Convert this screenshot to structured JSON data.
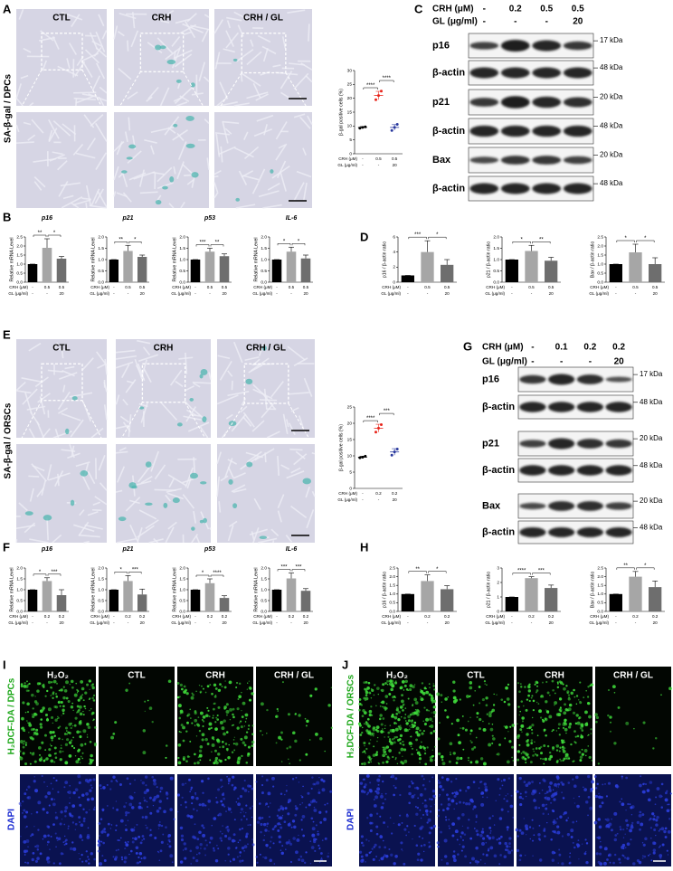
{
  "figure": {
    "letters": [
      "A",
      "B",
      "C",
      "D",
      "E",
      "F",
      "G",
      "H",
      "I",
      "J"
    ],
    "A": {
      "columns": [
        "CTL",
        "CRH",
        "CRH / GL"
      ],
      "side_label": "SA-β-gal / DPCs"
    },
    "C": {
      "header": [
        {
          "name": "CRH (μM)",
          "values": [
            "-",
            "0.2",
            "0.5",
            "0.5"
          ]
        },
        {
          "name": "GL (μg/ml)",
          "values": [
            "-",
            "-",
            "-",
            "20"
          ]
        }
      ],
      "rows": [
        {
          "label": "p16",
          "kda": "17 kDa"
        },
        {
          "label": "β-actin",
          "kda": "48 kDa"
        },
        {
          "label": "p21",
          "kda": "20 kDa"
        },
        {
          "label": "β-actin",
          "kda": "48 kDa"
        },
        {
          "label": "Bax",
          "kda": "20 kDa"
        },
        {
          "label": "β-actin",
          "kda": "48 kDa"
        }
      ]
    },
    "E": {
      "columns": [
        "CTL",
        "CRH",
        "CRH / GL"
      ],
      "side_label": "SA-β-gal / ORSCs"
    },
    "G": {
      "header": [
        {
          "name": "CRH (μM)",
          "values": [
            "-",
            "0.1",
            "0.2",
            "0.2"
          ]
        },
        {
          "name": "GL (μg/ml)",
          "values": [
            "-",
            "-",
            "-",
            "20"
          ]
        }
      ],
      "rows": [
        {
          "label": "p16",
          "kda": "17 kDa"
        },
        {
          "label": "β-actin",
          "kda": "48 kDa"
        },
        {
          "label": "p21",
          "kda": "20 kDa"
        },
        {
          "label": "β-actin",
          "kda": "48 kDa"
        },
        {
          "label": "Bax",
          "kda": "20 kDa"
        },
        {
          "label": "β-actin",
          "kda": "48 kDa"
        }
      ]
    },
    "I": {
      "columns": [
        "H₂O₂",
        "CTL",
        "CRH",
        "CRH / GL"
      ],
      "side_labels": [
        "H₂DCF-DA / DPCs",
        "DAPI"
      ]
    },
    "J": {
      "columns": [
        "H₂O₂",
        "CTL",
        "CRH",
        "CRH / GL"
      ],
      "side_labels": [
        "H₂DCF-DA / ORSCs",
        "DAPI"
      ]
    }
  },
  "chart_data": [
    {
      "type": "dot",
      "ylabel": "β-gal positive cells (%)",
      "values": [
        9.5,
        21,
        9.5
      ],
      "errors": [
        0.3,
        1.5,
        1.0
      ],
      "points": [
        [
          9.2,
          9.5,
          9.7
        ],
        [
          19.5,
          21.0,
          22.6
        ],
        [
          8.4,
          9.5,
          10.6
        ]
      ],
      "colors": [
        "#000000",
        "#e8251c",
        "#2b3a9e"
      ],
      "ylim": [
        0,
        30
      ],
      "yticks": [
        0,
        5,
        10,
        15,
        20,
        25,
        30
      ],
      "annotations": [
        "****",
        "****"
      ],
      "conditions": [
        {
          "name": "CRH (μM)",
          "values": [
            "-",
            "0.5",
            "0.5"
          ]
        },
        {
          "name": "GL (μg/ml)",
          "values": [
            "-",
            "-",
            "20"
          ]
        }
      ]
    },
    {
      "type": "bar",
      "title": "p16",
      "ylabel": "Relative mRNA Level",
      "values": [
        1,
        1.9,
        1.3
      ],
      "errors": [
        0,
        0.5,
        0.12
      ],
      "colors": [
        "#000000",
        "#a6a6a6",
        "#6e6e6e"
      ],
      "ylim": [
        0,
        2.5
      ],
      "yticks": [
        {
          "value": 0,
          "label": "0.0"
        },
        0.5,
        {
          "value": 1,
          "label": "1.0"
        },
        1.5,
        {
          "value": 2,
          "label": "2.0"
        },
        2.5
      ],
      "annotations": [
        "**",
        "*"
      ],
      "conditions": [
        {
          "name": "CRH (μM)",
          "values": [
            "-",
            "0.5",
            "0.5"
          ]
        },
        {
          "name": "GL (μg/ml)",
          "values": [
            "-",
            "-",
            "20"
          ]
        }
      ]
    },
    {
      "type": "bar",
      "title": "p21",
      "ylabel": "Relative mRNA Level",
      "values": [
        1,
        1.38,
        1.12
      ],
      "errors": [
        0,
        0.25,
        0.08
      ],
      "colors": [
        "#000000",
        "#a6a6a6",
        "#6e6e6e"
      ],
      "ylim": [
        0,
        2
      ],
      "yticks": [
        {
          "value": 0,
          "label": "0.0"
        },
        0.5,
        {
          "value": 1,
          "label": "1.0"
        },
        1.5,
        {
          "value": 2,
          "label": "2.0"
        }
      ],
      "annotations": [
        "**",
        "*"
      ],
      "conditions": [
        {
          "name": "CRH (μM)",
          "values": [
            "-",
            "0.5",
            "0.5"
          ]
        },
        {
          "name": "GL (μg/ml)",
          "values": [
            "-",
            "-",
            "20"
          ]
        }
      ]
    },
    {
      "type": "bar",
      "title": "p53",
      "ylabel": "Relative mRNA Level",
      "values": [
        1,
        1.35,
        1.15
      ],
      "errors": [
        0,
        0.15,
        0.1
      ],
      "colors": [
        "#000000",
        "#a6a6a6",
        "#6e6e6e"
      ],
      "ylim": [
        0,
        2
      ],
      "yticks": [
        {
          "value": 0,
          "label": "0.0"
        },
        0.5,
        {
          "value": 1,
          "label": "1.0"
        },
        1.5,
        {
          "value": 2,
          "label": "2.0"
        }
      ],
      "annotations": [
        "***",
        "**"
      ],
      "conditions": [
        {
          "name": "CRH (μM)",
          "values": [
            "-",
            "0.5",
            "0.5"
          ]
        },
        {
          "name": "GL (μg/ml)",
          "values": [
            "-",
            "-",
            "20"
          ]
        }
      ]
    },
    {
      "type": "bar",
      "title": "IL-6",
      "ylabel": "Relative mRNA Level",
      "values": [
        1,
        1.35,
        1.05
      ],
      "errors": [
        0,
        0.2,
        0.15
      ],
      "colors": [
        "#000000",
        "#a6a6a6",
        "#6e6e6e"
      ],
      "ylim": [
        0,
        2
      ],
      "yticks": [
        {
          "value": 0,
          "label": "0.0"
        },
        0.5,
        {
          "value": 1,
          "label": "1.0"
        },
        1.5,
        {
          "value": 2,
          "label": "2.0"
        }
      ],
      "annotations": [
        "*",
        "*"
      ],
      "conditions": [
        {
          "name": "CRH (μM)",
          "values": [
            "-",
            "0.5",
            "0.5"
          ]
        },
        {
          "name": "GL (μg/ml)",
          "values": [
            "-",
            "-",
            "20"
          ]
        }
      ]
    },
    {
      "type": "bar",
      "ylabel": "p16 / β-actin ratio",
      "values": [
        0.9,
        4.0,
        2.3
      ],
      "errors": [
        0,
        1.5,
        0.7
      ],
      "colors": [
        "#000000",
        "#a6a6a6",
        "#6e6e6e"
      ],
      "ylim": [
        0,
        6
      ],
      "yticks": [
        0,
        2,
        4,
        6
      ],
      "annotations": [
        "***",
        "*"
      ],
      "conditions": [
        {
          "name": "CRH (μM)",
          "values": [
            "-",
            "0.5",
            "0.5"
          ]
        },
        {
          "name": "GL (μg/ml)",
          "values": [
            "-",
            "-",
            "20"
          ]
        }
      ]
    },
    {
      "type": "bar",
      "ylabel": "p21 / β-actin ratio",
      "values": [
        1,
        1.38,
        0.95
      ],
      "errors": [
        0,
        0.25,
        0.15
      ],
      "colors": [
        "#000000",
        "#a6a6a6",
        "#6e6e6e"
      ],
      "ylim": [
        0,
        2
      ],
      "yticks": [
        {
          "value": 0,
          "label": "0.0"
        },
        0.5,
        {
          "value": 1,
          "label": "1.0"
        },
        1.5,
        {
          "value": 2,
          "label": "2.0"
        }
      ],
      "annotations": [
        "*",
        "**"
      ],
      "conditions": [
        {
          "name": "CRH (μM)",
          "values": [
            "-",
            "0.5",
            "0.5"
          ]
        },
        {
          "name": "GL (μg/ml)",
          "values": [
            "-",
            "-",
            "20"
          ]
        }
      ]
    },
    {
      "type": "bar",
      "ylabel": "Bax / β-actin ratio",
      "values": [
        1,
        1.65,
        1.0
      ],
      "errors": [
        0,
        0.45,
        0.35
      ],
      "colors": [
        "#000000",
        "#a6a6a6",
        "#6e6e6e"
      ],
      "ylim": [
        0,
        2.5
      ],
      "yticks": [
        {
          "value": 0,
          "label": "0.0"
        },
        0.5,
        {
          "value": 1,
          "label": "1.0"
        },
        1.5,
        {
          "value": 2,
          "label": "2.0"
        },
        2.5
      ],
      "annotations": [
        "*",
        "*"
      ],
      "conditions": [
        {
          "name": "CRH (μM)",
          "values": [
            "-",
            "0.5",
            "0.5"
          ]
        },
        {
          "name": "GL (μg/ml)",
          "values": [
            "-",
            "-",
            "20"
          ]
        }
      ]
    },
    {
      "type": "dot",
      "ylabel": "β-gal positive cells (%)",
      "values": [
        9.6,
        18.5,
        11.2
      ],
      "errors": [
        0.3,
        1.2,
        1.0
      ],
      "points": [
        [
          9.4,
          9.6,
          9.9
        ],
        [
          17.3,
          18.5,
          19.6
        ],
        [
          10.2,
          11.2,
          12.1
        ]
      ],
      "colors": [
        "#000000",
        "#e8251c",
        "#2b3a9e"
      ],
      "ylim": [
        0,
        25
      ],
      "yticks": [
        0,
        5,
        10,
        15,
        20,
        25
      ],
      "annotations": [
        "****",
        "***"
      ],
      "conditions": [
        {
          "name": "CRH (μM)",
          "values": [
            "-",
            "0.2",
            "0.2"
          ]
        },
        {
          "name": "GL (μg/ml)",
          "values": [
            "-",
            "-",
            "20"
          ]
        }
      ]
    },
    {
      "type": "bar",
      "title": "p16",
      "ylabel": "Relative mRNA Level",
      "values": [
        1,
        1.4,
        0.75
      ],
      "errors": [
        0,
        0.15,
        0.25
      ],
      "colors": [
        "#000000",
        "#a6a6a6",
        "#6e6e6e"
      ],
      "ylim": [
        0,
        2
      ],
      "yticks": [
        {
          "value": 0,
          "label": "0.0"
        },
        0.5,
        {
          "value": 1,
          "label": "1.0"
        },
        1.5,
        {
          "value": 2,
          "label": "2.0"
        }
      ],
      "annotations": [
        "*",
        "***"
      ],
      "conditions": [
        {
          "name": "CRH (μM)",
          "values": [
            "-",
            "0.2",
            "0.2"
          ]
        },
        {
          "name": "GL (μg/ml)",
          "values": [
            "-",
            "-",
            "20"
          ]
        }
      ]
    },
    {
      "type": "bar",
      "title": "p21",
      "ylabel": "Relative mRNA Level",
      "values": [
        1,
        1.4,
        0.78
      ],
      "errors": [
        0,
        0.25,
        0.25
      ],
      "colors": [
        "#000000",
        "#a6a6a6",
        "#6e6e6e"
      ],
      "ylim": [
        0,
        2
      ],
      "yticks": [
        {
          "value": 0,
          "label": "0.0"
        },
        0.5,
        {
          "value": 1,
          "label": "1.0"
        },
        1.5,
        {
          "value": 2,
          "label": "2.0"
        }
      ],
      "annotations": [
        "*",
        "***"
      ],
      "conditions": [
        {
          "name": "CRH (μM)",
          "values": [
            "-",
            "0.2",
            "0.2"
          ]
        },
        {
          "name": "GL (μg/ml)",
          "values": [
            "-",
            "-",
            "20"
          ]
        }
      ]
    },
    {
      "type": "bar",
      "title": "p53",
      "ylabel": "Relative mRNA Level",
      "values": [
        1,
        1.3,
        0.62
      ],
      "errors": [
        0,
        0.2,
        0.1
      ],
      "colors": [
        "#000000",
        "#a6a6a6",
        "#6e6e6e"
      ],
      "ylim": [
        0,
        2
      ],
      "yticks": [
        {
          "value": 0,
          "label": "0.0"
        },
        0.5,
        {
          "value": 1,
          "label": "1.0"
        },
        1.5,
        {
          "value": 2,
          "label": "2.0"
        }
      ],
      "annotations": [
        "*",
        "****"
      ],
      "conditions": [
        {
          "name": "CRH (μM)",
          "values": [
            "-",
            "0.2",
            "0.2"
          ]
        },
        {
          "name": "GL (μg/ml)",
          "values": [
            "-",
            "-",
            "20"
          ]
        }
      ]
    },
    {
      "type": "bar",
      "title": "IL-6",
      "ylabel": "Relative mRNA Level",
      "values": [
        1,
        1.52,
        0.95
      ],
      "errors": [
        0,
        0.25,
        0.1
      ],
      "colors": [
        "#000000",
        "#a6a6a6",
        "#6e6e6e"
      ],
      "ylim": [
        0,
        2
      ],
      "yticks": [
        {
          "value": 0,
          "label": "0.0"
        },
        0.5,
        {
          "value": 1,
          "label": "1.0"
        },
        1.5,
        {
          "value": 2,
          "label": "2.0"
        }
      ],
      "annotations": [
        "***",
        "***"
      ],
      "conditions": [
        {
          "name": "CRH (μM)",
          "values": [
            "-",
            "0.2",
            "0.2"
          ]
        },
        {
          "name": "GL (μg/ml)",
          "values": [
            "-",
            "-",
            "20"
          ]
        }
      ]
    },
    {
      "type": "bar",
      "ylabel": "p16 / β-actin ratio",
      "values": [
        1,
        1.75,
        1.28
      ],
      "errors": [
        0,
        0.35,
        0.2
      ],
      "colors": [
        "#000000",
        "#a6a6a6",
        "#6e6e6e"
      ],
      "ylim": [
        0,
        2.5
      ],
      "yticks": [
        {
          "value": 0,
          "label": "0.0"
        },
        0.5,
        {
          "value": 1,
          "label": "1.0"
        },
        1.5,
        {
          "value": 2,
          "label": "2.0"
        },
        2.5
      ],
      "annotations": [
        "**",
        "*"
      ],
      "conditions": [
        {
          "name": "CRH (μM)",
          "values": [
            "-",
            "0.2",
            "0.2"
          ]
        },
        {
          "name": "GL (μg/ml)",
          "values": [
            "-",
            "-",
            "20"
          ]
        }
      ]
    },
    {
      "type": "bar",
      "ylabel": "p21 / β-actin ratio",
      "values": [
        1,
        2.3,
        1.62
      ],
      "errors": [
        0,
        0.1,
        0.2
      ],
      "colors": [
        "#000000",
        "#a6a6a6",
        "#6e6e6e"
      ],
      "ylim": [
        0,
        3
      ],
      "yticks": [
        0,
        1,
        2,
        3
      ],
      "annotations": [
        "****",
        "***"
      ],
      "conditions": [
        {
          "name": "CRH (μM)",
          "values": [
            "-",
            "0.2",
            "0.2"
          ]
        },
        {
          "name": "GL (μg/ml)",
          "values": [
            "-",
            "-",
            "20"
          ]
        }
      ]
    },
    {
      "type": "bar",
      "ylabel": "Bax / β-actin ratio",
      "values": [
        1,
        2.0,
        1.4
      ],
      "errors": [
        0,
        0.3,
        0.35
      ],
      "colors": [
        "#000000",
        "#a6a6a6",
        "#6e6e6e"
      ],
      "ylim": [
        0,
        2.5
      ],
      "yticks": [
        {
          "value": 0,
          "label": "0.0"
        },
        0.5,
        {
          "value": 1,
          "label": "1.0"
        },
        1.5,
        {
          "value": 2,
          "label": "2.0"
        },
        2.5
      ],
      "annotations": [
        "**",
        "*"
      ],
      "conditions": [
        {
          "name": "CRH (μM)",
          "values": [
            "-",
            "0.2",
            "0.2"
          ]
        },
        {
          "name": "GL (μg/ml)",
          "values": [
            "-",
            "-",
            "20"
          ]
        }
      ]
    }
  ]
}
